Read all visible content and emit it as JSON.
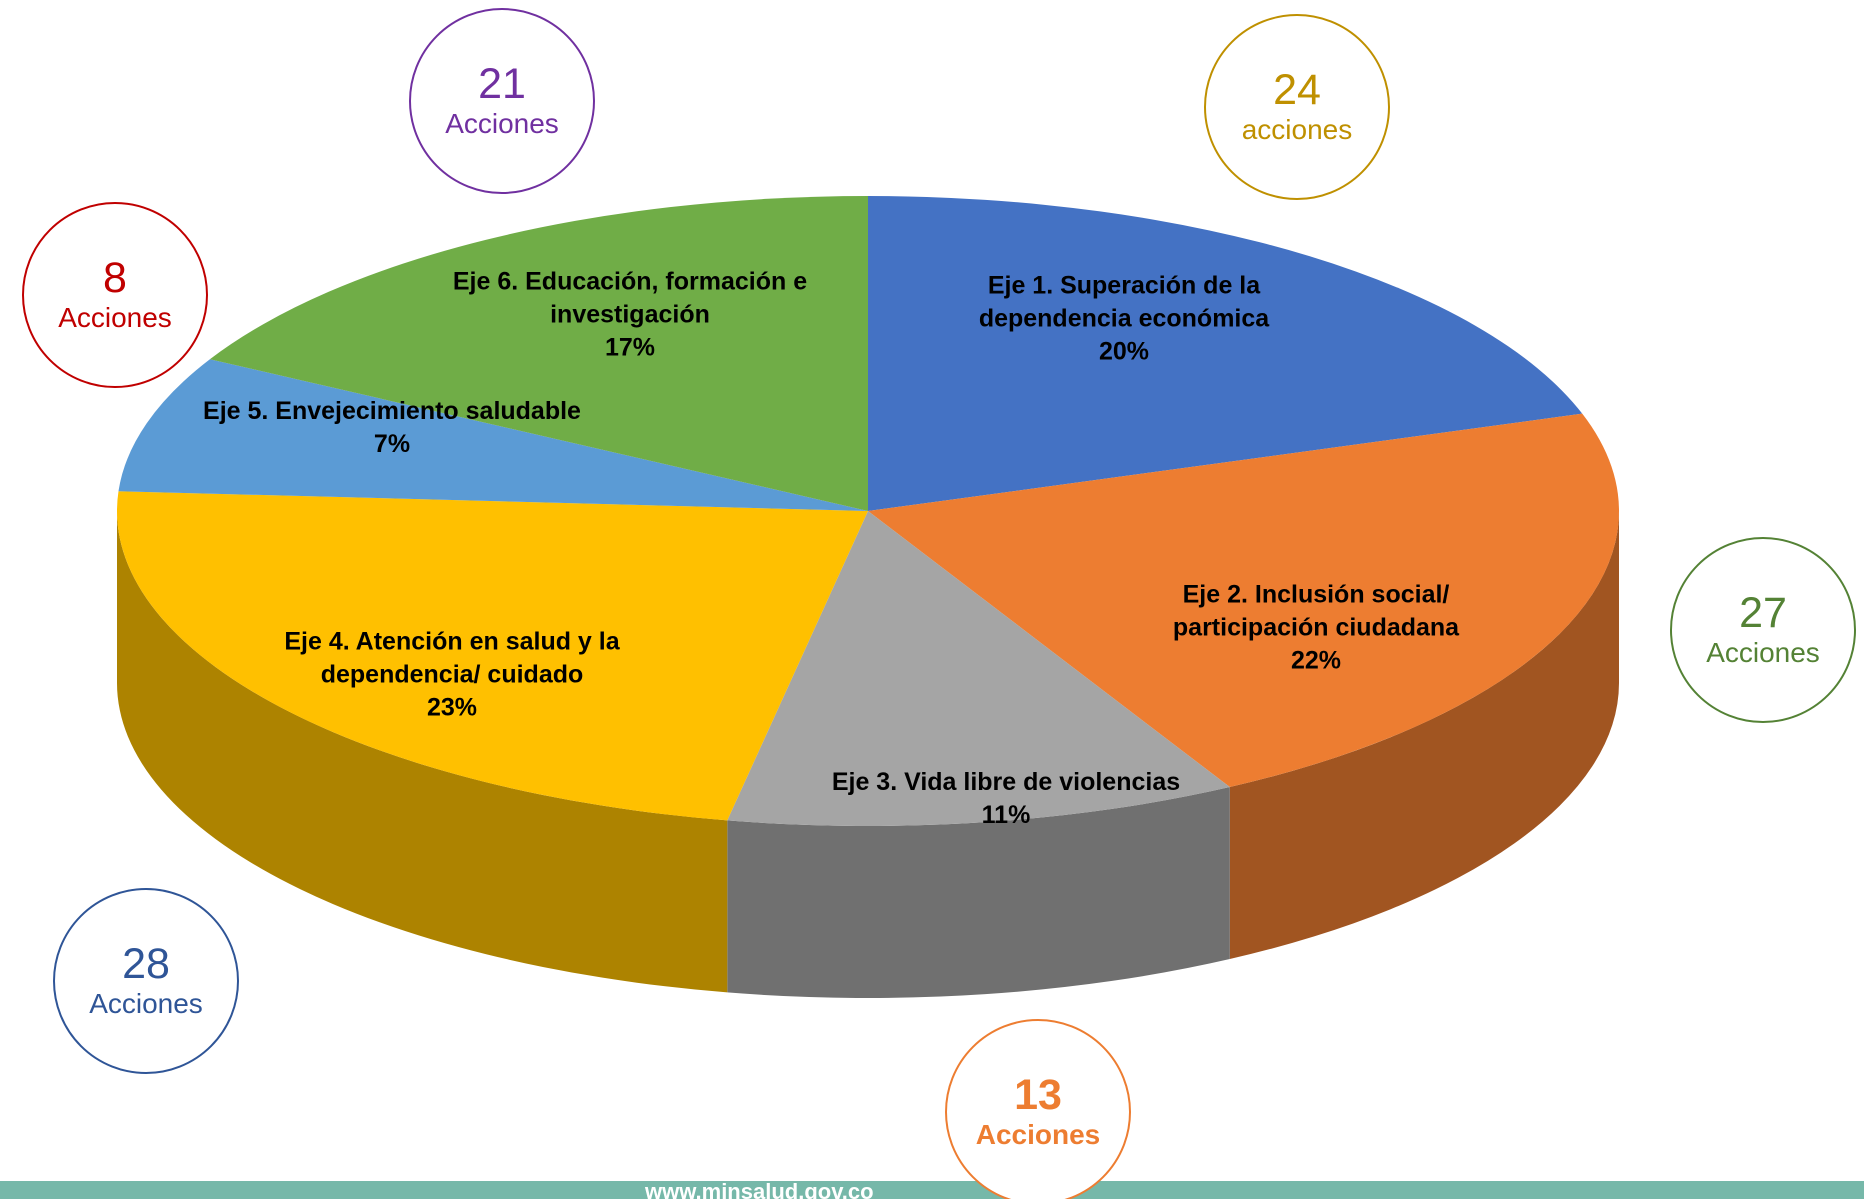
{
  "chart_data": {
    "type": "pie",
    "categories": [
      "Eje 1. Superación de la dependencia económica",
      "Eje 2. Inclusión social/ participación ciudadana",
      "Eje 3. Vida libre de violencias",
      "Eje 4. Atención en salud y la dependencia/ cuidado",
      "Eje 5. Envejecimiento saludable",
      "Eje 6. Educación, formación e investigación"
    ],
    "values": [
      20,
      22,
      11,
      23,
      7,
      17
    ],
    "value_labels": [
      "20%",
      "22%",
      "11%",
      "23%",
      "7%",
      "17%"
    ],
    "colors": [
      "#4472c4",
      "#ed7d31",
      "#a5a5a5",
      "#ffc000",
      "#5b9bd5",
      "#70ad47"
    ],
    "annotations": [
      {
        "number": 21,
        "text": "Acciones",
        "color": "#7030a0"
      },
      {
        "number": 24,
        "text": "acciones",
        "color": "#bf9000"
      },
      {
        "number": 8,
        "text": "Acciones",
        "color": "#c00000"
      },
      {
        "number": 27,
        "text": "Acciones",
        "color": "#548235"
      },
      {
        "number": 28,
        "text": "Acciones",
        "color": "#2f5597"
      },
      {
        "number": 13,
        "text": "Acciones",
        "color": "#ed7d31"
      }
    ],
    "footer": "www.minsalud.gov.co"
  }
}
